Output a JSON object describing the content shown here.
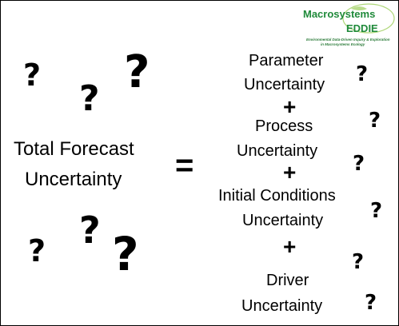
{
  "logo": {
    "name": "Macrosystems",
    "name2": "EDDIE",
    "tagline1": "Environmental Data-Driven Inquiry & Exploration",
    "tagline2": "in Macrosystems Ecology",
    "color": "#1f8a3a"
  },
  "equation": {
    "lhs_line1": "Total Forecast",
    "lhs_line2": "Uncertainty",
    "equals": "=",
    "plus": "+",
    "components": [
      {
        "line1": "Parameter",
        "line2": "Uncertainty"
      },
      {
        "line1": "Process",
        "line2": "Uncertainty"
      },
      {
        "line1": "Initial Conditions",
        "line2": "Uncertainty"
      },
      {
        "line1": "Driver",
        "line2": "Uncertainty"
      }
    ]
  },
  "question_mark": "?"
}
